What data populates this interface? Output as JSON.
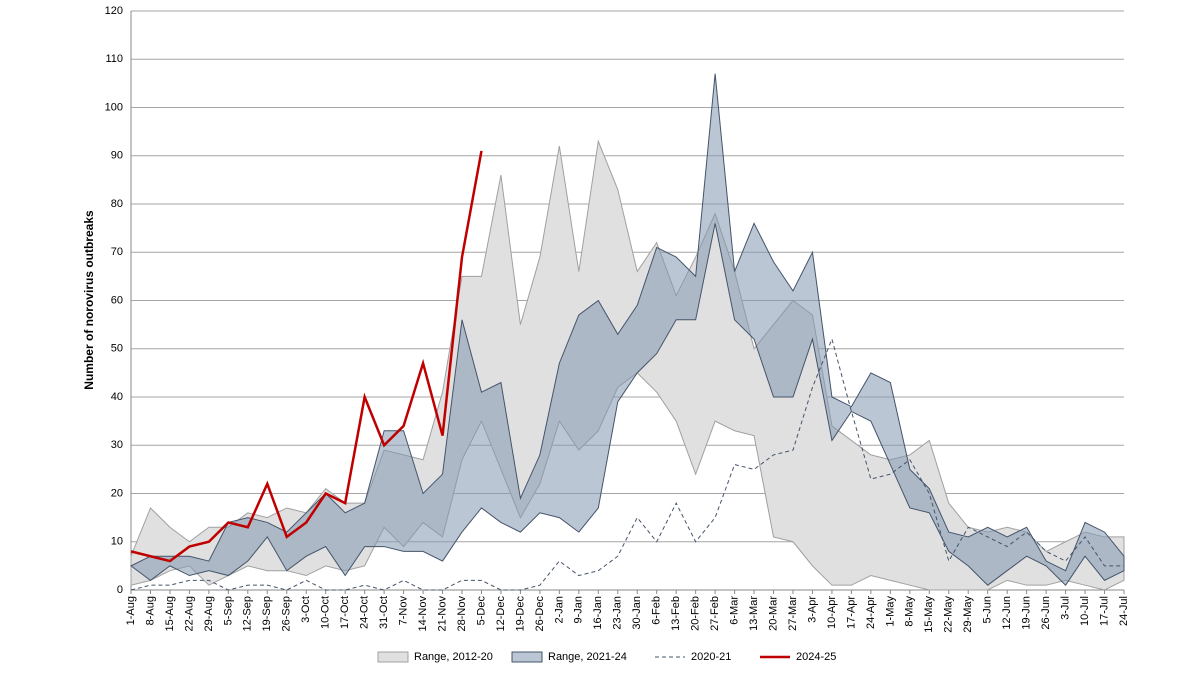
{
  "chart_data": {
    "type": "line",
    "ylabel": "Number of norovirus outbreaks",
    "categories": [
      "1-Aug",
      "8-Aug",
      "15-Aug",
      "22-Aug",
      "29-Aug",
      "5-Sep",
      "12-Sep",
      "19-Sep",
      "26-Sep",
      "3-Oct",
      "10-Oct",
      "17-Oct",
      "24-Oct",
      "31-Oct",
      "7-Nov",
      "14-Nov",
      "21-Nov",
      "28-Nov",
      "5-Dec",
      "12-Dec",
      "19-Dec",
      "26-Dec",
      "2-Jan",
      "9-Jan",
      "16-Jan",
      "23-Jan",
      "30-Jan",
      "6-Feb",
      "13-Feb",
      "20-Feb",
      "27-Feb",
      "6-Mar",
      "13-Mar",
      "20-Mar",
      "27-Mar",
      "3-Apr",
      "10-Apr",
      "17-Apr",
      "24-Apr",
      "1-May",
      "8-May",
      "15-May",
      "22-May",
      "29-May",
      "5-Jun",
      "12-Jun",
      "19-Jun",
      "26-Jun",
      "3-Jul",
      "10-Jul",
      "17-Jul",
      "24-Jul"
    ],
    "ylim": [
      0,
      120
    ],
    "yticks": [
      0,
      10,
      20,
      30,
      40,
      50,
      60,
      70,
      80,
      90,
      100,
      110,
      120
    ],
    "grid": true,
    "legend": "bottom",
    "series": [
      {
        "name": "Range, 2012-20",
        "type": "band",
        "color": "#e0e0e0",
        "edge": "#a0a0a0",
        "upper": [
          7,
          17,
          13,
          10,
          13,
          13,
          16,
          15,
          17,
          16,
          21,
          18,
          18,
          29,
          28,
          27,
          41,
          65,
          65,
          86,
          55,
          69,
          92,
          66,
          93,
          83,
          66,
          72,
          61,
          69,
          78,
          66,
          50,
          55,
          60,
          57,
          34,
          31,
          28,
          27,
          28,
          31,
          18,
          13,
          12,
          13,
          12,
          8,
          10,
          12,
          11,
          11
        ],
        "lower": [
          1,
          2,
          4,
          5,
          1,
          3,
          5,
          4,
          4,
          3,
          5,
          4,
          5,
          13,
          9,
          14,
          11,
          27,
          35,
          25,
          15,
          22,
          35,
          29,
          33,
          42,
          45,
          41,
          35,
          24,
          35,
          33,
          32,
          11,
          10,
          5,
          1,
          1,
          3,
          2,
          1,
          0,
          0,
          0,
          0,
          2,
          1,
          1,
          2,
          1,
          0,
          2
        ]
      },
      {
        "name": "Range, 2021-24",
        "type": "band",
        "color": "#8497b0",
        "edge": "#44546a",
        "upper": [
          5,
          7,
          7,
          7,
          6,
          14,
          15,
          14,
          12,
          16,
          20,
          16,
          18,
          33,
          33,
          20,
          24,
          56,
          41,
          43,
          19,
          28,
          47,
          57,
          60,
          53,
          59,
          71,
          69,
          65,
          107,
          66,
          76,
          68,
          62,
          70,
          40,
          38,
          45,
          43,
          25,
          21,
          12,
          11,
          13,
          11,
          13,
          6,
          4,
          14,
          12,
          7
        ],
        "lower": [
          5,
          2,
          5,
          3,
          4,
          3,
          6,
          11,
          4,
          7,
          9,
          3,
          9,
          9,
          8,
          8,
          6,
          12,
          17,
          14,
          12,
          16,
          15,
          12,
          17,
          39,
          45,
          49,
          56,
          56,
          76,
          56,
          52,
          40,
          40,
          52,
          31,
          37,
          35,
          26,
          17,
          16,
          8,
          5,
          1,
          4,
          7,
          5,
          1,
          7,
          2,
          4
        ]
      },
      {
        "name": "2020-21",
        "type": "dashed",
        "color": "#44546a",
        "values": [
          0,
          1,
          1,
          2,
          2,
          0,
          1,
          1,
          0,
          2,
          0,
          0,
          1,
          0,
          2,
          0,
          0,
          2,
          2,
          0,
          0,
          1,
          6,
          3,
          4,
          7,
          15,
          10,
          18,
          10,
          15,
          26,
          25,
          28,
          29,
          42,
          52,
          37,
          23,
          24,
          27,
          20,
          6,
          13,
          11,
          9,
          12,
          8,
          6,
          11,
          5,
          5
        ]
      },
      {
        "name": "2024-25",
        "type": "solid",
        "color": "#c00000",
        "values": [
          8,
          7,
          6,
          9,
          10,
          14,
          13,
          22,
          11,
          14,
          20,
          18,
          40,
          30,
          34,
          47,
          32,
          69,
          91,
          null,
          null,
          null,
          null,
          null,
          null,
          null,
          null,
          null,
          null,
          null,
          null,
          null,
          null,
          null,
          null,
          null,
          null,
          null,
          null,
          null,
          null,
          null,
          null,
          null,
          null,
          null,
          null,
          null,
          null,
          null,
          null,
          null
        ]
      }
    ]
  }
}
